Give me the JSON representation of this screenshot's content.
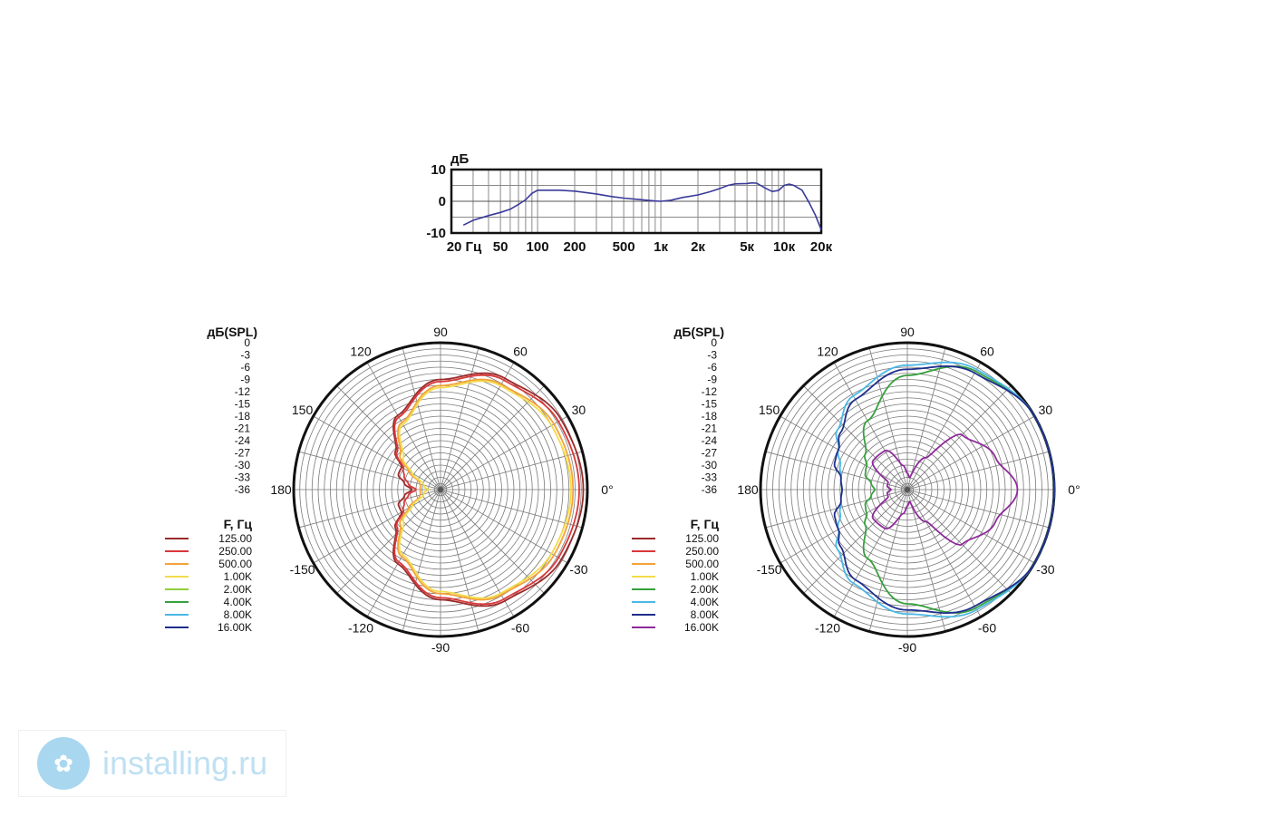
{
  "chart_data": [
    {
      "type": "line",
      "ylabel": "дБ",
      "y_ticks": [
        "10",
        "0",
        "-10"
      ],
      "ylim": [
        -10,
        10
      ],
      "x_scale": "log",
      "x_ticks": [
        "20 Гц",
        "50",
        "100",
        "200",
        "500",
        "1к",
        "2к",
        "5к",
        "10к",
        "20к"
      ],
      "x_tick_values": [
        20,
        50,
        100,
        200,
        500,
        1000,
        2000,
        5000,
        10000,
        20000
      ],
      "xlim": [
        20,
        20000
      ],
      "grid": true,
      "series": [
        {
          "color": "#3a3a9a",
          "x": [
            25,
            30,
            40,
            50,
            60,
            70,
            80,
            90,
            100,
            120,
            150,
            200,
            300,
            400,
            500,
            700,
            900,
            1000,
            1200,
            1500,
            2000,
            2500,
            3000,
            3500,
            4000,
            5000,
            5500,
            6000,
            7000,
            8000,
            9000,
            10000,
            11000,
            12000,
            14000,
            16000,
            18000,
            20000
          ],
          "y": [
            -7.5,
            -6,
            -4.5,
            -3.5,
            -2.5,
            -1.0,
            0.5,
            2.5,
            3.5,
            3.5,
            3.5,
            3.2,
            2.3,
            1.5,
            1.0,
            0.5,
            0.1,
            0.0,
            0.3,
            1.2,
            2.0,
            3.0,
            4.0,
            5.0,
            5.5,
            5.6,
            5.8,
            5.7,
            4.2,
            3.1,
            3.4,
            5.0,
            5.4,
            5.0,
            3.5,
            -0.5,
            -4.5,
            -9.0
          ]
        }
      ]
    },
    {
      "type": "polar",
      "rlabel": "дБ(SPL)",
      "r_ticks": [
        "0",
        "-3",
        "-6",
        "-9",
        "-12",
        "-15",
        "-18",
        "-21",
        "-24",
        "-27",
        "-30",
        "-33",
        "-36"
      ],
      "rlim": [
        -36,
        0
      ],
      "angle_labels": [
        "0°",
        "30",
        "60",
        "90",
        "120",
        "150",
        "180",
        "-150",
        "-120",
        "-90",
        "-60",
        "-30"
      ],
      "legend_title": "F, Гц",
      "legend": [
        {
          "name": "125.00",
          "color": "#9b2a2a"
        },
        {
          "name": "250.00",
          "color": "#d9383a"
        },
        {
          "name": "500.00",
          "color": "#f4a13a"
        },
        {
          "name": "1.00K",
          "color": "#f2dc4a"
        },
        {
          "name": "2.00K",
          "color": "#8fcf3c"
        },
        {
          "name": "4.00K",
          "color": "#36a03c"
        },
        {
          "name": "8.00K",
          "color": "#4ab8e6"
        },
        {
          "name": "16.00K",
          "color": "#1f2e8c"
        }
      ],
      "series": [
        {
          "name": "125.00",
          "color": "#9b2a2a",
          "angles": [
            0,
            30,
            60,
            90,
            120,
            140,
            150,
            160,
            170,
            180
          ],
          "db": [
            -1,
            -1.8,
            -4.5,
            -9,
            -15,
            -21.5,
            -25,
            -25,
            -27,
            -29
          ]
        },
        {
          "name": "250.00",
          "color": "#d9383a",
          "angles": [
            0,
            30,
            60,
            90,
            120,
            140,
            150,
            160,
            170,
            180
          ],
          "db": [
            -2,
            -2.6,
            -5.0,
            -9.5,
            -15.5,
            -22,
            -25.5,
            -26.5,
            -28,
            -30
          ]
        },
        {
          "name": "500.00",
          "color": "#f4a13a",
          "angles": [
            0,
            30,
            60,
            90,
            120,
            140,
            150,
            160,
            170,
            180
          ],
          "db": [
            -3.5,
            -3.9,
            -6.2,
            -10.5,
            -17,
            -23,
            -27,
            -30.5,
            -31,
            -31
          ]
        },
        {
          "name": "1.00K",
          "color": "#f2dc4a",
          "angles": [
            0,
            30,
            60,
            90,
            120,
            140,
            150,
            160,
            170,
            180
          ],
          "db": [
            -4,
            -4.6,
            -6.6,
            -11,
            -17.5,
            -24,
            -28,
            -31.5,
            -32,
            -33
          ]
        }
      ]
    },
    {
      "type": "polar",
      "rlabel": "дБ(SPL)",
      "r_ticks": [
        "0",
        "-3",
        "-6",
        "-9",
        "-12",
        "-15",
        "-18",
        "-21",
        "-24",
        "-27",
        "-30",
        "-33",
        "-36"
      ],
      "rlim": [
        -36,
        0
      ],
      "angle_labels": [
        "0°",
        "30",
        "60",
        "90",
        "120",
        "150",
        "180",
        "-150",
        "-120",
        "-90",
        "-60",
        "-30"
      ],
      "legend_title": "F, Гц",
      "legend": [
        {
          "name": "125.00",
          "color": "#9b2a2a"
        },
        {
          "name": "250.00",
          "color": "#d9383a"
        },
        {
          "name": "500.00",
          "color": "#f4a13a"
        },
        {
          "name": "1.00K",
          "color": "#f2dc4a"
        },
        {
          "name": "2.00K",
          "color": "#36a03c"
        },
        {
          "name": "4.00K",
          "color": "#4ab8e6"
        },
        {
          "name": "8.00K",
          "color": "#1f2e8c"
        },
        {
          "name": "16.00K",
          "color": "#8e2b9a"
        }
      ],
      "series": [
        {
          "name": "2.00K",
          "color": "#36a03c",
          "angles": [
            0,
            30,
            60,
            90,
            120,
            140,
            150,
            160,
            170,
            180
          ],
          "db": [
            0,
            0,
            -2.5,
            -8,
            -16.5,
            -22.5,
            -24.5,
            -25,
            -27,
            -28
          ]
        },
        {
          "name": "4.00K",
          "color": "#4ab8e6",
          "angles": [
            0,
            30,
            60,
            90,
            120,
            140,
            150,
            160,
            170,
            180
          ],
          "db": [
            0,
            0,
            -2.0,
            -5.5,
            -9.5,
            -13.5,
            -16.5,
            -18.5,
            -19.5,
            -20
          ]
        },
        {
          "name": "8.00K",
          "color": "#1f2e8c",
          "angles": [
            0,
            30,
            60,
            90,
            120,
            140,
            150,
            160,
            170,
            180
          ],
          "db": [
            0,
            0,
            -3.0,
            -6.5,
            -10.5,
            -14.5,
            -16.5,
            -17,
            -19.5,
            -20
          ]
        },
        {
          "name": "16.00K",
          "color": "#8e2b9a",
          "angles": [
            0,
            20,
            45,
            60,
            80,
            90,
            100,
            120,
            140,
            160,
            170,
            180
          ],
          "db": [
            -9,
            -13,
            -17,
            -27,
            -33,
            -32,
            -30,
            -25,
            -25,
            -31,
            -31,
            -32
          ]
        }
      ]
    }
  ],
  "watermark": {
    "text": "installing.ru"
  }
}
